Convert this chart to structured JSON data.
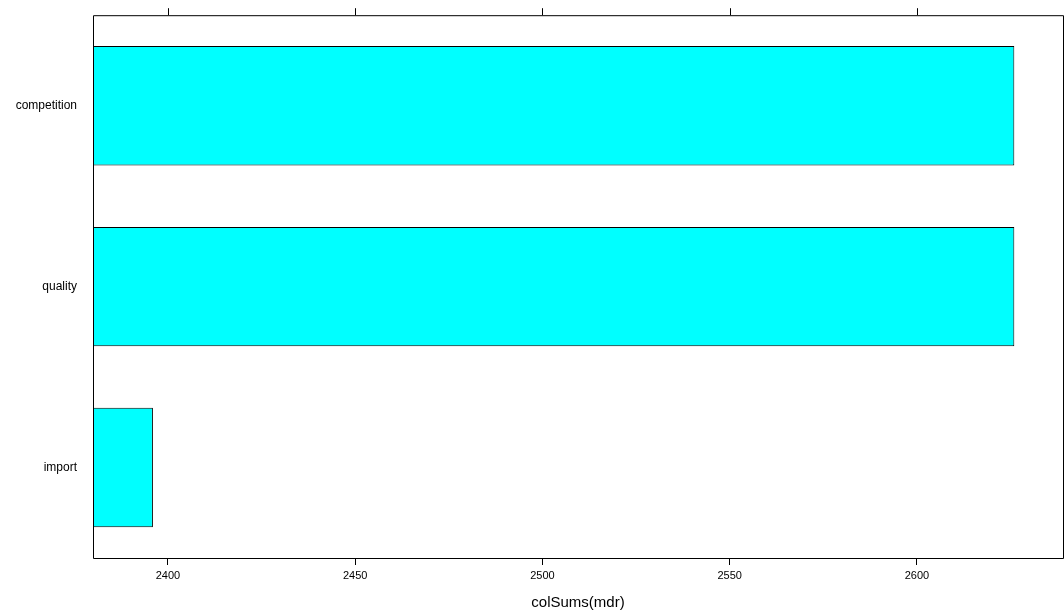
{
  "chart_data": {
    "type": "bar",
    "orientation": "horizontal",
    "xlabel": "colSums(mdr)",
    "categories": [
      "competition",
      "quality",
      "import"
    ],
    "values": [
      2626,
      2626,
      2396
    ],
    "color": "#00ffff",
    "xlim": [
      2380,
      2639
    ],
    "xticks": [
      2400,
      2450,
      2500,
      2550,
      2600
    ],
    "grid": false,
    "legend": false
  }
}
